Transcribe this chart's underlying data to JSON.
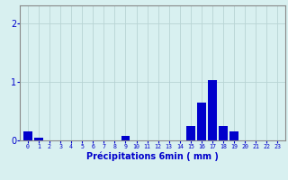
{
  "categories": [
    0,
    1,
    2,
    3,
    4,
    5,
    6,
    7,
    8,
    9,
    10,
    11,
    12,
    13,
    14,
    15,
    16,
    17,
    18,
    19,
    20,
    21,
    22,
    23
  ],
  "values": [
    0.15,
    0.05,
    0,
    0,
    0,
    0,
    0,
    0,
    0,
    0.08,
    0,
    0,
    0,
    0,
    0,
    0.25,
    0.65,
    1.02,
    0.25,
    0.15,
    0,
    0,
    0,
    0
  ],
  "bar_color": "#0000cc",
  "background_color": "#d8f0f0",
  "grid_color": "#b8d4d4",
  "axis_color": "#0000cc",
  "tick_color": "#0000cc",
  "xlabel": "Précipitations 6min ( mm )",
  "xlabel_fontsize": 7,
  "ylim": [
    0,
    2.3
  ],
  "yticks": [
    0,
    1,
    2
  ],
  "bar_width": 0.8
}
